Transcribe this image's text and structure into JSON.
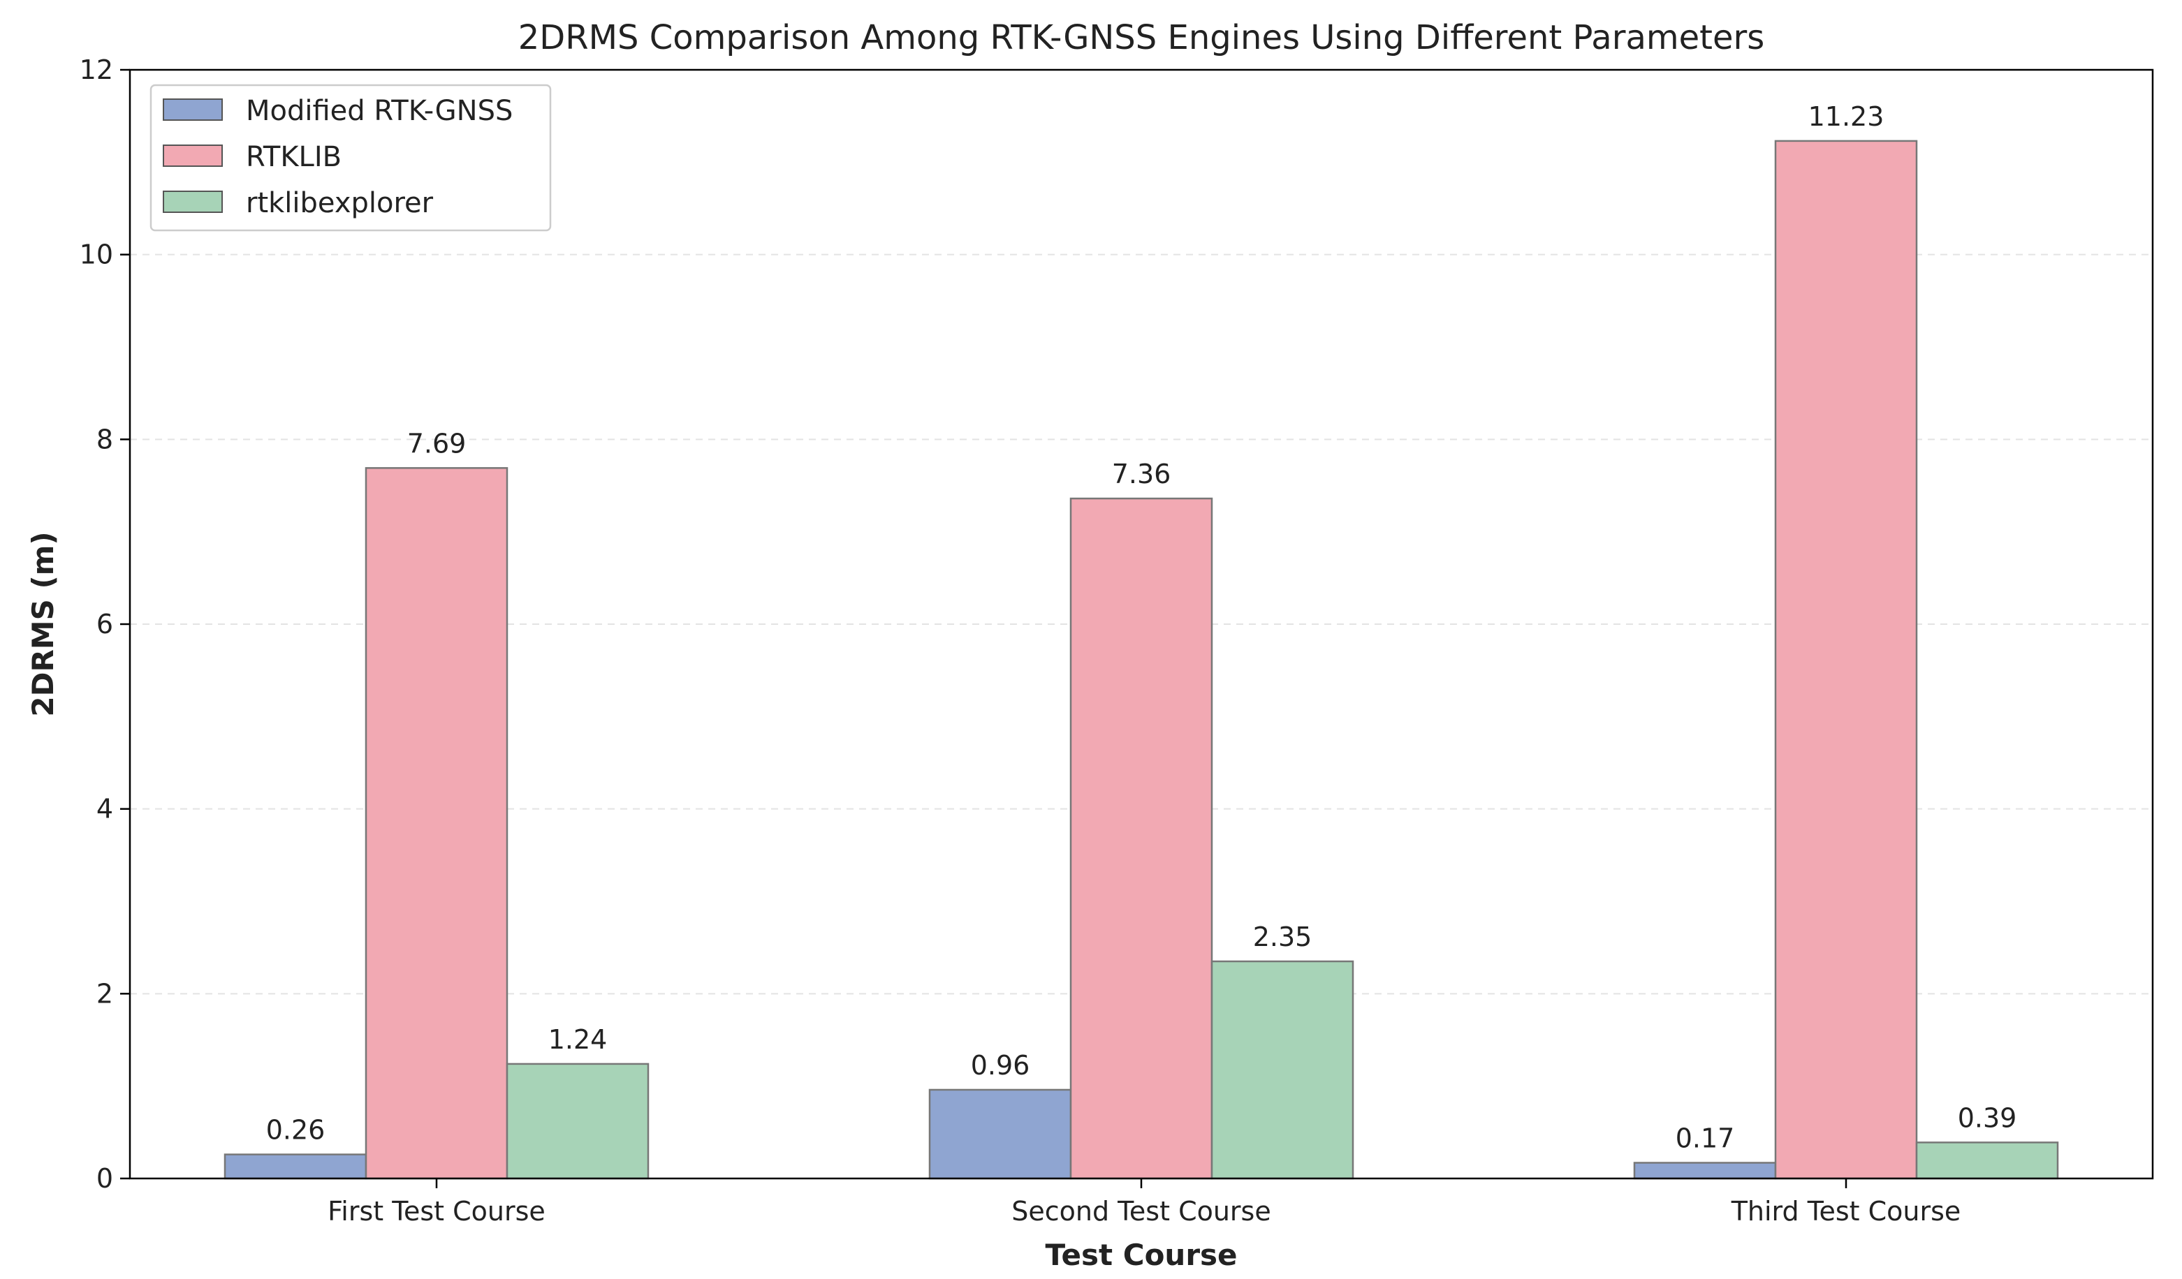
{
  "chart_data": {
    "type": "bar",
    "title": "2DRMS Comparison Among RTK-GNSS Engines Using Different Parameters",
    "xlabel": "Test Course",
    "ylabel": "2DRMS (m)",
    "categories": [
      "First Test Course",
      "Second Test Course",
      "Third Test Course"
    ],
    "series": [
      {
        "name": "Modified RTK-GNSS",
        "color": "#8fa5d1",
        "values": [
          0.26,
          0.96,
          0.17
        ],
        "labels": [
          "0.26",
          "0.96",
          "0.17"
        ]
      },
      {
        "name": "RTKLIB",
        "color": "#f2a9b3",
        "values": [
          7.69,
          7.36,
          11.23
        ],
        "labels": [
          "7.69",
          "7.36",
          "11.23"
        ]
      },
      {
        "name": "rtklibexplorer",
        "color": "#a7d3b7",
        "values": [
          1.24,
          2.35,
          0.39
        ],
        "labels": [
          "1.24",
          "2.35",
          "0.39"
        ]
      }
    ],
    "ylim": [
      0,
      12
    ],
    "yticks": [
      0,
      2,
      4,
      6,
      8,
      10,
      12
    ],
    "ytick_labels": [
      "0",
      "2",
      "4",
      "6",
      "8",
      "10",
      "12"
    ],
    "grid": "y, dashed",
    "legend_position": "top-left"
  }
}
